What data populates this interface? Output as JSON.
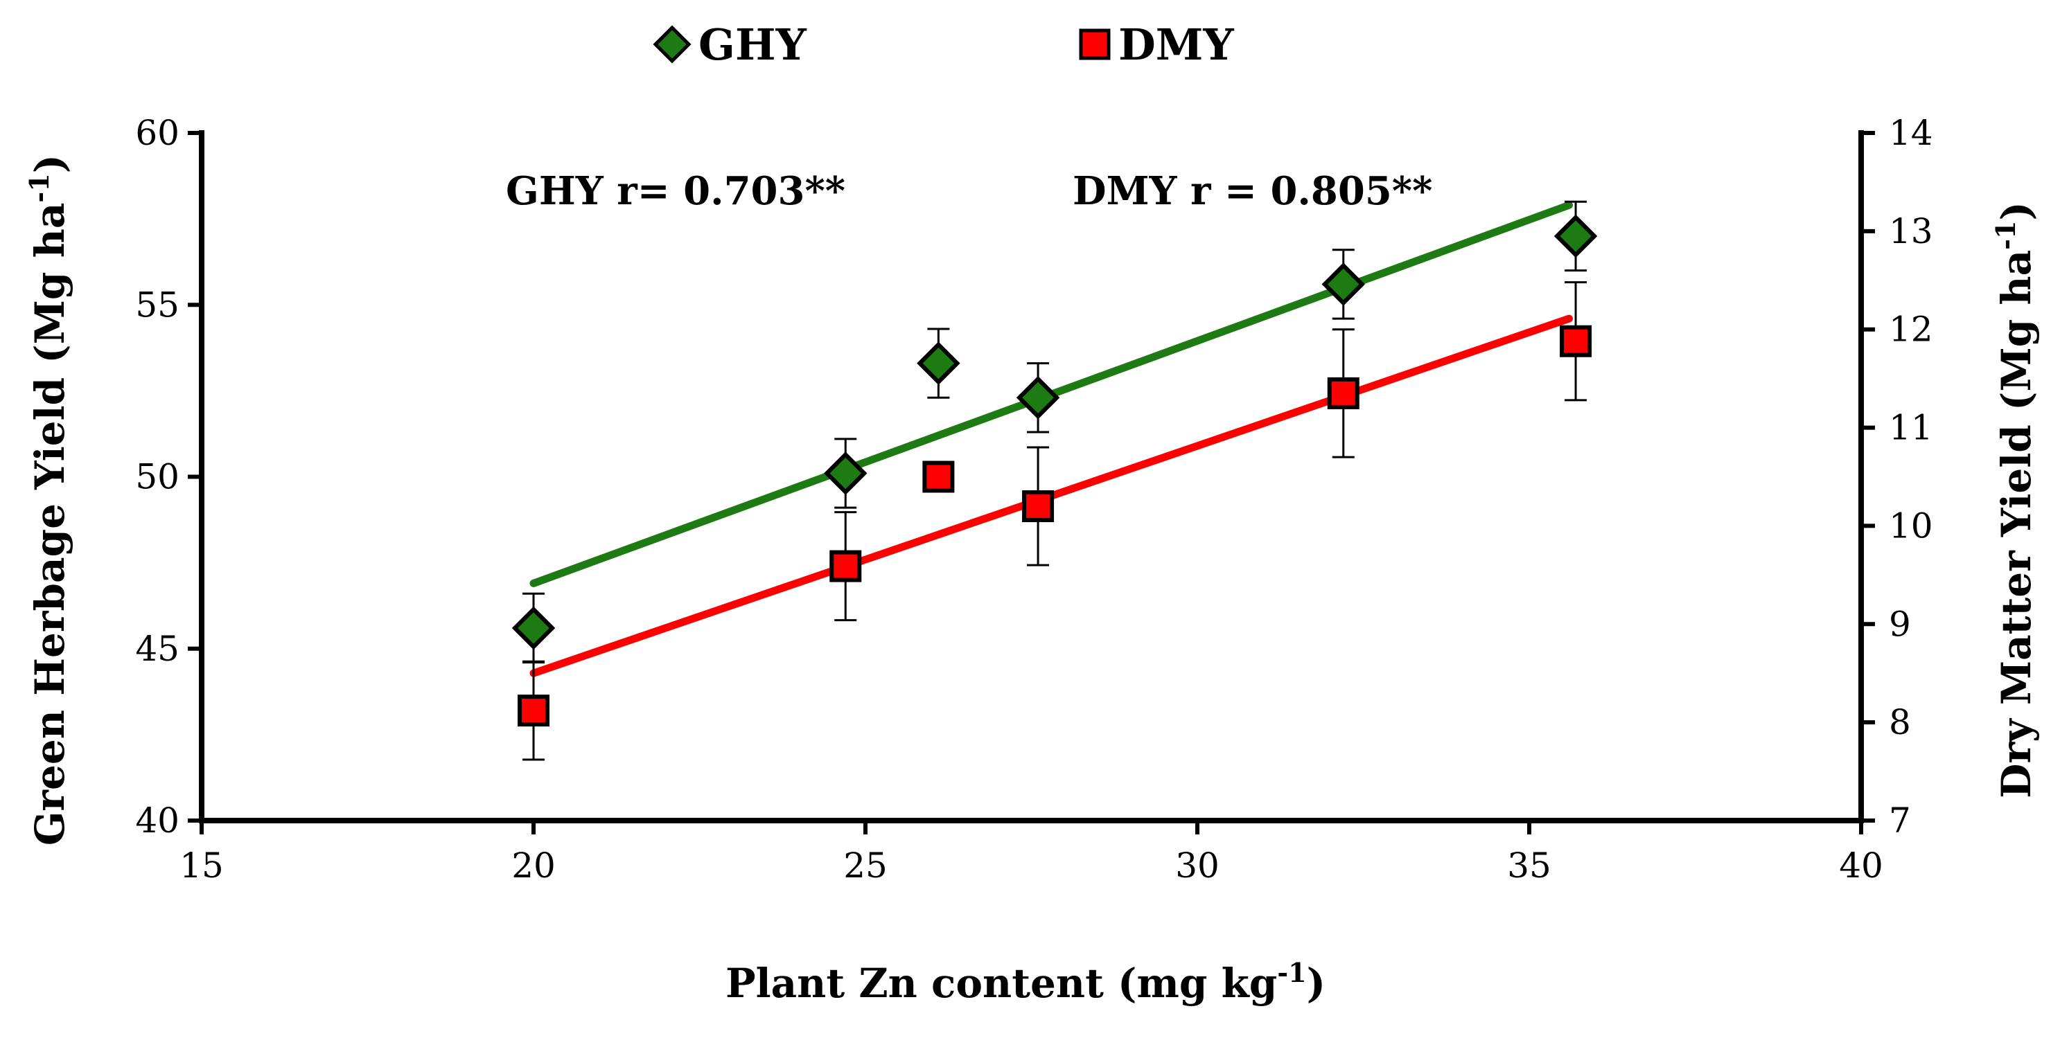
{
  "chart_data": {
    "type": "scatter",
    "xlabel": "Plant Zn content (mg kg",
    "xlabel_sup": "-1",
    "xlabel_end": ")",
    "ylabel_left": "Green Herbage Yield (Mg ha",
    "ylabel_left_sup": "-1",
    "ylabel_left_end": ")",
    "ylabel_right": "Dry Matter Yield (Mg ha",
    "ylabel_right_sup": "-1",
    "ylabel_right_end": ")",
    "xlim": [
      15,
      40
    ],
    "xticks": [
      15,
      20,
      25,
      30,
      35,
      40
    ],
    "ylim_left": [
      40,
      60
    ],
    "yticks_left": [
      40,
      45,
      50,
      55,
      60
    ],
    "ylim_right": [
      7,
      14
    ],
    "yticks_right": [
      7,
      8,
      9,
      10,
      11,
      12,
      13,
      14
    ],
    "legend_position": "top-center",
    "series": [
      {
        "name": "GHY",
        "axis": "left",
        "color": "#1e7a12",
        "marker": "diamond",
        "x": [
          20.0,
          24.7,
          26.1,
          27.6,
          32.2,
          35.7
        ],
        "y": [
          45.6,
          50.1,
          53.3,
          52.3,
          55.6,
          57.0
        ],
        "err": [
          1.0,
          1.0,
          1.0,
          1.0,
          1.0,
          1.0
        ],
        "fit": {
          "x": [
            20.0,
            35.6
          ],
          "y": [
            46.9,
            57.9
          ]
        },
        "annotation": "GHY r= 0.703**"
      },
      {
        "name": "DMY",
        "axis": "right",
        "color": "#ff0000",
        "marker": "square",
        "x": [
          20.0,
          24.7,
          26.1,
          27.6,
          32.2,
          35.7
        ],
        "y": [
          8.12,
          9.59,
          10.5,
          10.2,
          11.35,
          11.88
        ],
        "err": [
          0.5,
          0.55,
          0.15,
          0.6,
          0.65,
          0.6
        ],
        "fit": {
          "x": [
            20.0,
            35.6
          ],
          "y": [
            8.5,
            12.11
          ]
        },
        "annotation": "DMY  r = 0.805**"
      }
    ]
  }
}
